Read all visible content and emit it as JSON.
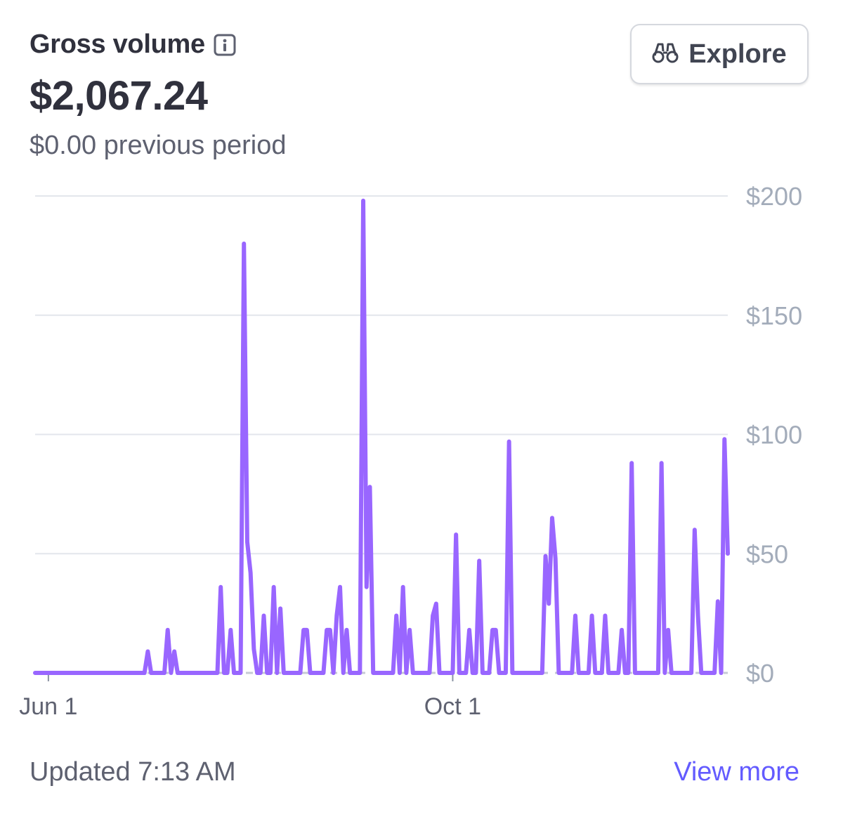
{
  "header": {
    "title": "Gross volume",
    "info_icon": "info-icon",
    "amount": "$2,067.24",
    "previous_period": "$0.00 previous period"
  },
  "explore_button": {
    "icon": "binoculars-icon",
    "label": "Explore"
  },
  "footer": {
    "updated": "Updated 7:13 AM",
    "view_more": "View more"
  },
  "colors": {
    "line": "#9966ff",
    "grid": "#e3e6ec",
    "axis_text": "#a3acba",
    "link": "#635bff"
  },
  "chart_data": {
    "type": "line",
    "ylim": [
      0,
      200
    ],
    "y_ticks": [
      {
        "value": 0,
        "label": "$0"
      },
      {
        "value": 50,
        "label": "$50"
      },
      {
        "value": 100,
        "label": "$100"
      },
      {
        "value": 150,
        "label": "$150"
      },
      {
        "value": 200,
        "label": "$200"
      }
    ],
    "x_ticks": [
      {
        "index": 4,
        "label": "Jun 1"
      },
      {
        "index": 126,
        "label": "Oct 1"
      }
    ],
    "grid": true,
    "series": [
      {
        "values": [
          0,
          0,
          0,
          0,
          0,
          0,
          0,
          0,
          0,
          0,
          0,
          0,
          0,
          0,
          0,
          0,
          0,
          0,
          0,
          0,
          0,
          0,
          0,
          0,
          0,
          0,
          0,
          0,
          0,
          0,
          0,
          0,
          0,
          0,
          9,
          0,
          0,
          0,
          0,
          0,
          18,
          0,
          9,
          0,
          0,
          0,
          0,
          0,
          0,
          0,
          0,
          0,
          0,
          0,
          0,
          0,
          36,
          0,
          0,
          18,
          0,
          0,
          0,
          180,
          55,
          42,
          10,
          0,
          0,
          24,
          0,
          0,
          36,
          0,
          27,
          0,
          0,
          0,
          0,
          0,
          0,
          18,
          18,
          0,
          0,
          0,
          0,
          0,
          18,
          18,
          0,
          24,
          36,
          0,
          18,
          0,
          0,
          0,
          0,
          198,
          36,
          78,
          0,
          0,
          0,
          0,
          0,
          0,
          0,
          24,
          0,
          36,
          0,
          18,
          0,
          0,
          0,
          0,
          0,
          0,
          24,
          29,
          0,
          0,
          0,
          0,
          0,
          58,
          0,
          0,
          0,
          18,
          0,
          0,
          47,
          0,
          0,
          0,
          18,
          18,
          0,
          0,
          0,
          97,
          0,
          0,
          0,
          0,
          0,
          0,
          0,
          0,
          0,
          0,
          49,
          29,
          65,
          48,
          0,
          0,
          0,
          0,
          0,
          24,
          0,
          0,
          0,
          0,
          24,
          0,
          0,
          0,
          24,
          0,
          0,
          0,
          0,
          18,
          0,
          0,
          88,
          0,
          0,
          0,
          0,
          0,
          0,
          0,
          0,
          88,
          0,
          18,
          0,
          0,
          0,
          0,
          0,
          0,
          0,
          60,
          24,
          0,
          0,
          0,
          0,
          0,
          30,
          0,
          98,
          50
        ]
      }
    ]
  }
}
